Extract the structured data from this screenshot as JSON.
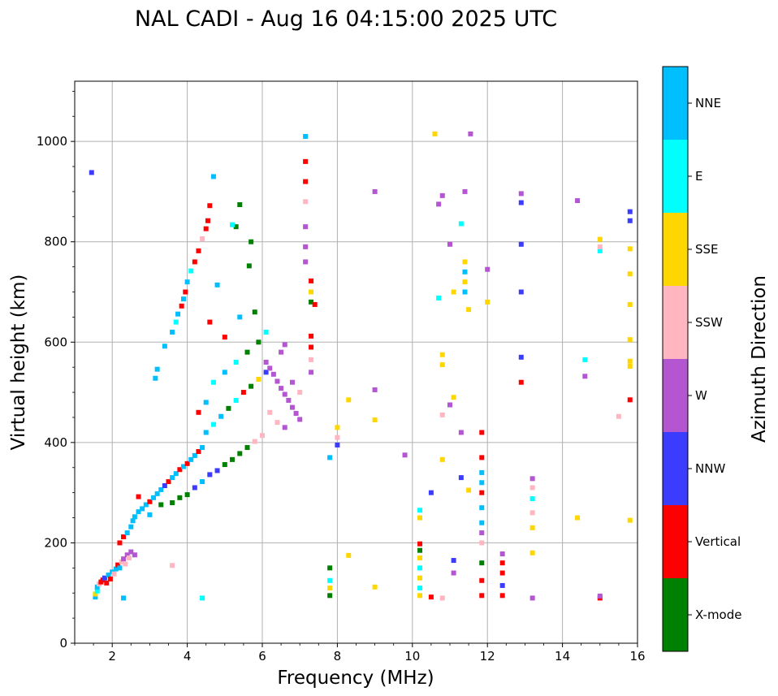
{
  "chart_data": {
    "type": "scatter",
    "title": "NAL CADI - Aug 16 04:15:00 2025 UTC",
    "xlabel": "Frequency (MHz)",
    "ylabel": "Virtual height (km)",
    "xlim": [
      1,
      16
    ],
    "ylim": [
      0,
      1120
    ],
    "xticks": [
      "2",
      "4",
      "6",
      "8",
      "10",
      "12",
      "14",
      "16"
    ],
    "yticks": [
      "0",
      "200",
      "400",
      "600",
      "800",
      "1000"
    ],
    "grid": true,
    "colorbar": {
      "label": "Azimuth Direction",
      "categories": [
        {
          "name": "X-mode",
          "color": "#008000"
        },
        {
          "name": "Vertical",
          "color": "#ff0000"
        },
        {
          "name": "NNW",
          "color": "#3c3cff"
        },
        {
          "name": "W",
          "color": "#b455d2"
        },
        {
          "name": "SSW",
          "color": "#ffb6c1"
        },
        {
          "name": "SSE",
          "color": "#ffd700"
        },
        {
          "name": "E",
          "color": "#00ffff"
        },
        {
          "name": "NNE",
          "color": "#00bfff"
        }
      ]
    },
    "echoes": [
      {
        "f": 1.55,
        "h": 92,
        "c": "NNE"
      },
      {
        "f": 1.55,
        "h": 98,
        "c": "SSE"
      },
      {
        "f": 1.6,
        "h": 104,
        "c": "E"
      },
      {
        "f": 1.6,
        "h": 112,
        "c": "NNE"
      },
      {
        "f": 1.65,
        "h": 118,
        "c": "SSW"
      },
      {
        "f": 1.7,
        "h": 122,
        "c": "Vertical"
      },
      {
        "f": 1.75,
        "h": 126,
        "c": "Vertical"
      },
      {
        "f": 1.8,
        "h": 130,
        "c": "NNW"
      },
      {
        "f": 1.85,
        "h": 120,
        "c": "Vertical"
      },
      {
        "f": 1.9,
        "h": 136,
        "c": "NNE"
      },
      {
        "f": 1.95,
        "h": 128,
        "c": "Vertical"
      },
      {
        "f": 2.0,
        "h": 142,
        "c": "NNE"
      },
      {
        "f": 2.05,
        "h": 138,
        "c": "SSW"
      },
      {
        "f": 2.1,
        "h": 148,
        "c": "NNE"
      },
      {
        "f": 2.15,
        "h": 156,
        "c": "Vertical"
      },
      {
        "f": 2.2,
        "h": 150,
        "c": "NNE"
      },
      {
        "f": 2.25,
        "h": 162,
        "c": "SSW"
      },
      {
        "f": 2.3,
        "h": 168,
        "c": "W"
      },
      {
        "f": 2.35,
        "h": 158,
        "c": "SSW"
      },
      {
        "f": 2.4,
        "h": 176,
        "c": "W"
      },
      {
        "f": 2.45,
        "h": 170,
        "c": "SSW"
      },
      {
        "f": 2.5,
        "h": 182,
        "c": "W"
      },
      {
        "f": 2.6,
        "h": 176,
        "c": "W"
      },
      {
        "f": 2.2,
        "h": 200,
        "c": "Vertical"
      },
      {
        "f": 2.3,
        "h": 212,
        "c": "Vertical"
      },
      {
        "f": 2.4,
        "h": 220,
        "c": "NNE"
      },
      {
        "f": 2.5,
        "h": 232,
        "c": "NNE"
      },
      {
        "f": 2.55,
        "h": 244,
        "c": "NNE"
      },
      {
        "f": 2.6,
        "h": 252,
        "c": "NNE"
      },
      {
        "f": 2.7,
        "h": 262,
        "c": "NNE"
      },
      {
        "f": 2.8,
        "h": 268,
        "c": "NNE"
      },
      {
        "f": 2.9,
        "h": 276,
        "c": "NNE"
      },
      {
        "f": 3.0,
        "h": 282,
        "c": "Vertical"
      },
      {
        "f": 3.1,
        "h": 290,
        "c": "NNE"
      },
      {
        "f": 3.2,
        "h": 298,
        "c": "NNE"
      },
      {
        "f": 3.3,
        "h": 306,
        "c": "NNE"
      },
      {
        "f": 3.4,
        "h": 314,
        "c": "NNW"
      },
      {
        "f": 3.5,
        "h": 322,
        "c": "Vertical"
      },
      {
        "f": 3.6,
        "h": 330,
        "c": "NNE"
      },
      {
        "f": 3.7,
        "h": 338,
        "c": "NNE"
      },
      {
        "f": 3.8,
        "h": 346,
        "c": "Vertical"
      },
      {
        "f": 3.9,
        "h": 352,
        "c": "NNE"
      },
      {
        "f": 4.0,
        "h": 358,
        "c": "Vertical"
      },
      {
        "f": 4.1,
        "h": 366,
        "c": "NNE"
      },
      {
        "f": 4.2,
        "h": 374,
        "c": "NNE"
      },
      {
        "f": 4.3,
        "h": 382,
        "c": "Vertical"
      },
      {
        "f": 4.4,
        "h": 390,
        "c": "NNE"
      },
      {
        "f": 2.7,
        "h": 292,
        "c": "Vertical"
      },
      {
        "f": 3.0,
        "h": 256,
        "c": "NNE"
      },
      {
        "f": 3.3,
        "h": 276,
        "c": "X-mode"
      },
      {
        "f": 3.6,
        "h": 280,
        "c": "X-mode"
      },
      {
        "f": 3.8,
        "h": 290,
        "c": "X-mode"
      },
      {
        "f": 4.0,
        "h": 296,
        "c": "X-mode"
      },
      {
        "f": 4.2,
        "h": 310,
        "c": "NNW"
      },
      {
        "f": 4.4,
        "h": 322,
        "c": "NNE"
      },
      {
        "f": 4.6,
        "h": 336,
        "c": "NNW"
      },
      {
        "f": 4.8,
        "h": 344,
        "c": "NNW"
      },
      {
        "f": 5.0,
        "h": 356,
        "c": "X-mode"
      },
      {
        "f": 5.2,
        "h": 366,
        "c": "X-mode"
      },
      {
        "f": 5.4,
        "h": 378,
        "c": "X-mode"
      },
      {
        "f": 5.6,
        "h": 390,
        "c": "X-mode"
      },
      {
        "f": 5.8,
        "h": 402,
        "c": "SSW"
      },
      {
        "f": 6.0,
        "h": 414,
        "c": "SSW"
      },
      {
        "f": 4.5,
        "h": 420,
        "c": "NNE"
      },
      {
        "f": 4.7,
        "h": 436,
        "c": "E"
      },
      {
        "f": 4.9,
        "h": 452,
        "c": "NNE"
      },
      {
        "f": 5.1,
        "h": 468,
        "c": "X-mode"
      },
      {
        "f": 5.3,
        "h": 484,
        "c": "E"
      },
      {
        "f": 5.5,
        "h": 500,
        "c": "Vertical"
      },
      {
        "f": 5.7,
        "h": 512,
        "c": "X-mode"
      },
      {
        "f": 5.9,
        "h": 526,
        "c": "SSE"
      },
      {
        "f": 6.1,
        "h": 540,
        "c": "NNW"
      },
      {
        "f": 4.3,
        "h": 460,
        "c": "Vertical"
      },
      {
        "f": 4.5,
        "h": 480,
        "c": "NNE"
      },
      {
        "f": 4.7,
        "h": 520,
        "c": "E"
      },
      {
        "f": 5.0,
        "h": 540,
        "c": "NNE"
      },
      {
        "f": 5.3,
        "h": 560,
        "c": "E"
      },
      {
        "f": 5.6,
        "h": 580,
        "c": "X-mode"
      },
      {
        "f": 5.9,
        "h": 600,
        "c": "X-mode"
      },
      {
        "f": 6.1,
        "h": 620,
        "c": "E"
      },
      {
        "f": 5.0,
        "h": 610,
        "c": "Vertical"
      },
      {
        "f": 5.4,
        "h": 650,
        "c": "NNE"
      },
      {
        "f": 5.8,
        "h": 660,
        "c": "X-mode"
      },
      {
        "f": 4.6,
        "h": 640,
        "c": "Vertical"
      },
      {
        "f": 6.1,
        "h": 560,
        "c": "W"
      },
      {
        "f": 6.2,
        "h": 548,
        "c": "W"
      },
      {
        "f": 6.3,
        "h": 536,
        "c": "W"
      },
      {
        "f": 6.4,
        "h": 522,
        "c": "W"
      },
      {
        "f": 6.5,
        "h": 508,
        "c": "W"
      },
      {
        "f": 6.6,
        "h": 496,
        "c": "W"
      },
      {
        "f": 6.7,
        "h": 484,
        "c": "W"
      },
      {
        "f": 6.8,
        "h": 470,
        "c": "W"
      },
      {
        "f": 6.9,
        "h": 458,
        "c": "W"
      },
      {
        "f": 7.0,
        "h": 446,
        "c": "W"
      },
      {
        "f": 6.2,
        "h": 460,
        "c": "SSW"
      },
      {
        "f": 6.4,
        "h": 440,
        "c": "SSW"
      },
      {
        "f": 6.6,
        "h": 430,
        "c": "W"
      },
      {
        "f": 6.8,
        "h": 520,
        "c": "W"
      },
      {
        "f": 7.0,
        "h": 500,
        "c": "SSW"
      },
      {
        "f": 6.5,
        "h": 580,
        "c": "W"
      },
      {
        "f": 6.6,
        "h": 595,
        "c": "W"
      },
      {
        "f": 3.15,
        "h": 528,
        "c": "NNE"
      },
      {
        "f": 3.2,
        "h": 546,
        "c": "NNE"
      },
      {
        "f": 3.4,
        "h": 592,
        "c": "NNE"
      },
      {
        "f": 3.6,
        "h": 620,
        "c": "NNE"
      },
      {
        "f": 3.7,
        "h": 640,
        "c": "E"
      },
      {
        "f": 3.75,
        "h": 656,
        "c": "NNE"
      },
      {
        "f": 3.85,
        "h": 672,
        "c": "Vertical"
      },
      {
        "f": 3.9,
        "h": 686,
        "c": "NNE"
      },
      {
        "f": 3.95,
        "h": 700,
        "c": "Vertical"
      },
      {
        "f": 4.0,
        "h": 720,
        "c": "NNE"
      },
      {
        "f": 4.1,
        "h": 742,
        "c": "E"
      },
      {
        "f": 4.2,
        "h": 760,
        "c": "Vertical"
      },
      {
        "f": 4.3,
        "h": 782,
        "c": "Vertical"
      },
      {
        "f": 4.4,
        "h": 806,
        "c": "SSW"
      },
      {
        "f": 4.5,
        "h": 826,
        "c": "Vertical"
      },
      {
        "f": 4.55,
        "h": 842,
        "c": "Vertical"
      },
      {
        "f": 4.6,
        "h": 872,
        "c": "Vertical"
      },
      {
        "f": 4.7,
        "h": 930,
        "c": "NNE"
      },
      {
        "f": 4.8,
        "h": 714,
        "c": "NNE"
      },
      {
        "f": 5.3,
        "h": 830,
        "c": "X-mode"
      },
      {
        "f": 5.4,
        "h": 874,
        "c": "X-mode"
      },
      {
        "f": 5.7,
        "h": 800,
        "c": "X-mode"
      },
      {
        "f": 5.65,
        "h": 752,
        "c": "X-mode"
      },
      {
        "f": 5.2,
        "h": 834,
        "c": "E"
      },
      {
        "f": 1.45,
        "h": 938,
        "c": "NNW"
      },
      {
        "f": 2.3,
        "h": 90,
        "c": "NNE"
      },
      {
        "f": 3.6,
        "h": 155,
        "c": "SSW"
      },
      {
        "f": 4.4,
        "h": 90,
        "c": "E"
      },
      {
        "f": 7.3,
        "h": 540,
        "c": "W"
      },
      {
        "f": 7.3,
        "h": 565,
        "c": "SSW"
      },
      {
        "f": 7.3,
        "h": 590,
        "c": "Vertical"
      },
      {
        "f": 7.3,
        "h": 612,
        "c": "Vertical"
      },
      {
        "f": 7.3,
        "h": 680,
        "c": "X-mode"
      },
      {
        "f": 7.3,
        "h": 700,
        "c": "SSE"
      },
      {
        "f": 7.3,
        "h": 722,
        "c": "Vertical"
      },
      {
        "f": 7.15,
        "h": 760,
        "c": "W"
      },
      {
        "f": 7.15,
        "h": 790,
        "c": "W"
      },
      {
        "f": 7.15,
        "h": 830,
        "c": "W"
      },
      {
        "f": 7.15,
        "h": 880,
        "c": "SSW"
      },
      {
        "f": 7.15,
        "h": 920,
        "c": "Vertical"
      },
      {
        "f": 7.15,
        "h": 960,
        "c": "Vertical"
      },
      {
        "f": 7.15,
        "h": 1010,
        "c": "NNE"
      },
      {
        "f": 7.4,
        "h": 675,
        "c": "Vertical"
      },
      {
        "f": 7.8,
        "h": 95,
        "c": "X-mode"
      },
      {
        "f": 7.8,
        "h": 110,
        "c": "SSE"
      },
      {
        "f": 7.8,
        "h": 125,
        "c": "E"
      },
      {
        "f": 7.8,
        "h": 150,
        "c": "X-mode"
      },
      {
        "f": 7.8,
        "h": 370,
        "c": "NNE"
      },
      {
        "f": 8.0,
        "h": 395,
        "c": "NNW"
      },
      {
        "f": 8.0,
        "h": 410,
        "c": "SSW"
      },
      {
        "f": 8.0,
        "h": 430,
        "c": "SSE"
      },
      {
        "f": 8.3,
        "h": 485,
        "c": "SSE"
      },
      {
        "f": 8.3,
        "h": 175,
        "c": "SSE"
      },
      {
        "f": 9.0,
        "h": 112,
        "c": "SSE"
      },
      {
        "f": 9.0,
        "h": 445,
        "c": "SSE"
      },
      {
        "f": 9.0,
        "h": 505,
        "c": "W"
      },
      {
        "f": 9.0,
        "h": 900,
        "c": "W"
      },
      {
        "f": 9.8,
        "h": 375,
        "c": "W"
      },
      {
        "f": 10.2,
        "h": 95,
        "c": "SSE"
      },
      {
        "f": 10.2,
        "h": 110,
        "c": "E"
      },
      {
        "f": 10.2,
        "h": 130,
        "c": "SSE"
      },
      {
        "f": 10.2,
        "h": 150,
        "c": "E"
      },
      {
        "f": 10.2,
        "h": 170,
        "c": "SSE"
      },
      {
        "f": 10.2,
        "h": 185,
        "c": "X-mode"
      },
      {
        "f": 10.2,
        "h": 198,
        "c": "Vertical"
      },
      {
        "f": 10.2,
        "h": 250,
        "c": "SSE"
      },
      {
        "f": 10.2,
        "h": 265,
        "c": "E"
      },
      {
        "f": 10.5,
        "h": 92,
        "c": "Vertical"
      },
      {
        "f": 10.5,
        "h": 300,
        "c": "NNW"
      },
      {
        "f": 10.7,
        "h": 688,
        "c": "E"
      },
      {
        "f": 10.8,
        "h": 575,
        "c": "SSE"
      },
      {
        "f": 10.8,
        "h": 555,
        "c": "SSE"
      },
      {
        "f": 10.8,
        "h": 455,
        "c": "SSW"
      },
      {
        "f": 10.8,
        "h": 366,
        "c": "SSE"
      },
      {
        "f": 10.8,
        "h": 892,
        "c": "W"
      },
      {
        "f": 10.7,
        "h": 875,
        "c": "W"
      },
      {
        "f": 10.6,
        "h": 1015,
        "c": "SSE"
      },
      {
        "f": 10.8,
        "h": 90,
        "c": "SSW"
      },
      {
        "f": 11.0,
        "h": 475,
        "c": "W"
      },
      {
        "f": 11.1,
        "h": 490,
        "c": "SSE"
      },
      {
        "f": 11.1,
        "h": 700,
        "c": "SSE"
      },
      {
        "f": 11.1,
        "h": 140,
        "c": "W"
      },
      {
        "f": 11.1,
        "h": 165,
        "c": "NNW"
      },
      {
        "f": 11.3,
        "h": 420,
        "c": "W"
      },
      {
        "f": 11.3,
        "h": 330,
        "c": "NNW"
      },
      {
        "f": 11.3,
        "h": 836,
        "c": "E"
      },
      {
        "f": 11.4,
        "h": 900,
        "c": "W"
      },
      {
        "f": 11.5,
        "h": 665,
        "c": "SSE"
      },
      {
        "f": 11.4,
        "h": 700,
        "c": "NNE"
      },
      {
        "f": 11.4,
        "h": 720,
        "c": "SSE"
      },
      {
        "f": 11.4,
        "h": 740,
        "c": "NNE"
      },
      {
        "f": 11.4,
        "h": 760,
        "c": "SSE"
      },
      {
        "f": 11.5,
        "h": 305,
        "c": "SSE"
      },
      {
        "f": 11.55,
        "h": 1015,
        "c": "W"
      },
      {
        "f": 11.0,
        "h": 795,
        "c": "W"
      },
      {
        "f": 11.85,
        "h": 95,
        "c": "Vertical"
      },
      {
        "f": 11.85,
        "h": 125,
        "c": "Vertical"
      },
      {
        "f": 11.85,
        "h": 160,
        "c": "X-mode"
      },
      {
        "f": 11.85,
        "h": 200,
        "c": "SSW"
      },
      {
        "f": 11.85,
        "h": 220,
        "c": "W"
      },
      {
        "f": 11.85,
        "h": 240,
        "c": "NNE"
      },
      {
        "f": 11.85,
        "h": 270,
        "c": "NNE"
      },
      {
        "f": 11.85,
        "h": 300,
        "c": "Vertical"
      },
      {
        "f": 11.85,
        "h": 320,
        "c": "NNE"
      },
      {
        "f": 11.85,
        "h": 340,
        "c": "NNE"
      },
      {
        "f": 11.85,
        "h": 370,
        "c": "Vertical"
      },
      {
        "f": 11.85,
        "h": 420,
        "c": "Vertical"
      },
      {
        "f": 12.0,
        "h": 680,
        "c": "SSE"
      },
      {
        "f": 12.0,
        "h": 745,
        "c": "W"
      },
      {
        "f": 12.4,
        "h": 95,
        "c": "Vertical"
      },
      {
        "f": 12.4,
        "h": 115,
        "c": "NNW"
      },
      {
        "f": 12.4,
        "h": 140,
        "c": "Vertical"
      },
      {
        "f": 12.4,
        "h": 160,
        "c": "Vertical"
      },
      {
        "f": 12.4,
        "h": 178,
        "c": "W"
      },
      {
        "f": 12.9,
        "h": 520,
        "c": "Vertical"
      },
      {
        "f": 12.9,
        "h": 570,
        "c": "NNW"
      },
      {
        "f": 12.9,
        "h": 700,
        "c": "NNW"
      },
      {
        "f": 12.9,
        "h": 795,
        "c": "NNW"
      },
      {
        "f": 12.9,
        "h": 878,
        "c": "NNW"
      },
      {
        "f": 12.9,
        "h": 896,
        "c": "W"
      },
      {
        "f": 13.2,
        "h": 90,
        "c": "W"
      },
      {
        "f": 13.2,
        "h": 180,
        "c": "SSE"
      },
      {
        "f": 13.2,
        "h": 230,
        "c": "SSE"
      },
      {
        "f": 13.2,
        "h": 260,
        "c": "SSW"
      },
      {
        "f": 13.2,
        "h": 288,
        "c": "E"
      },
      {
        "f": 13.2,
        "h": 310,
        "c": "SSW"
      },
      {
        "f": 13.2,
        "h": 328,
        "c": "W"
      },
      {
        "f": 14.4,
        "h": 250,
        "c": "SSE"
      },
      {
        "f": 14.4,
        "h": 882,
        "c": "W"
      },
      {
        "f": 14.6,
        "h": 565,
        "c": "E"
      },
      {
        "f": 14.6,
        "h": 532,
        "c": "W"
      },
      {
        "f": 15.0,
        "h": 90,
        "c": "Vertical"
      },
      {
        "f": 15.0,
        "h": 94,
        "c": "W"
      },
      {
        "f": 15.0,
        "h": 782,
        "c": "E"
      },
      {
        "f": 15.0,
        "h": 805,
        "c": "SSE"
      },
      {
        "f": 15.0,
        "h": 790,
        "c": "SSW"
      },
      {
        "f": 15.5,
        "h": 452,
        "c": "SSW"
      },
      {
        "f": 15.8,
        "h": 245,
        "c": "SSE"
      },
      {
        "f": 15.8,
        "h": 485,
        "c": "Vertical"
      },
      {
        "f": 15.8,
        "h": 552,
        "c": "SSE"
      },
      {
        "f": 15.8,
        "h": 562,
        "c": "SSE"
      },
      {
        "f": 15.8,
        "h": 605,
        "c": "SSE"
      },
      {
        "f": 15.8,
        "h": 675,
        "c": "SSE"
      },
      {
        "f": 15.8,
        "h": 736,
        "c": "SSE"
      },
      {
        "f": 15.8,
        "h": 786,
        "c": "SSE"
      },
      {
        "f": 15.8,
        "h": 842,
        "c": "NNW"
      },
      {
        "f": 15.8,
        "h": 860,
        "c": "NNW"
      }
    ]
  }
}
